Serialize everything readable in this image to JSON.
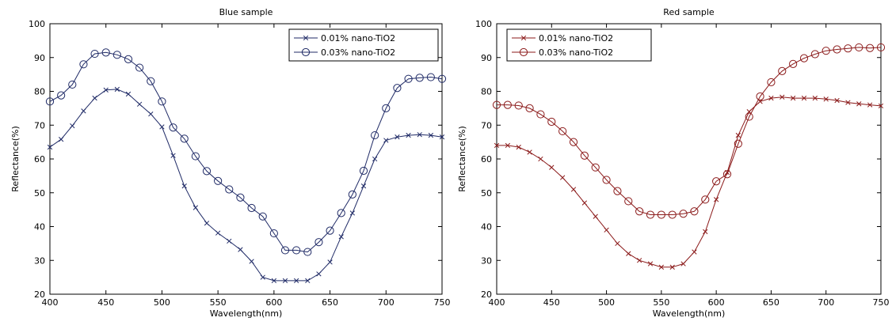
{
  "chart_data": [
    {
      "type": "line",
      "title": "Blue sample",
      "xlabel": "Wavelength(nm)",
      "ylabel": "Reflectance(%)",
      "xlim": [
        400,
        750
      ],
      "ylim": [
        20,
        100
      ],
      "xticks": [
        400,
        450,
        500,
        550,
        600,
        650,
        700,
        750
      ],
      "yticks": [
        20,
        30,
        40,
        50,
        60,
        70,
        80,
        90,
        100
      ],
      "grid": false,
      "legend_position": "top-right",
      "color": "#1f2a66",
      "x": [
        400,
        410,
        420,
        430,
        440,
        450,
        460,
        470,
        480,
        490,
        500,
        510,
        520,
        530,
        540,
        550,
        560,
        570,
        580,
        590,
        600,
        610,
        620,
        630,
        640,
        650,
        660,
        670,
        680,
        690,
        700,
        710,
        720,
        730,
        740,
        750
      ],
      "series": [
        {
          "name": "0.01% nano-TiO2",
          "marker": "x",
          "values": [
            63.5,
            65.8,
            69.8,
            74.2,
            78,
            80.4,
            80.6,
            79.2,
            76.2,
            73.3,
            69.5,
            61,
            52,
            45.6,
            41,
            38.1,
            35.7,
            33.2,
            29.7,
            25,
            24,
            24,
            24,
            24,
            26,
            29.5,
            37,
            44,
            52,
            60,
            65.5,
            66.5,
            67,
            67.2,
            67,
            66.5
          ]
        },
        {
          "name": "0.03% nano-TiO2",
          "marker": "o",
          "values": [
            77,
            78.8,
            82,
            88,
            91.1,
            91.5,
            90.8,
            89.5,
            87,
            83,
            77,
            69.3,
            66,
            60.8,
            56.4,
            53.5,
            51,
            48.6,
            45.5,
            43,
            38,
            33,
            33,
            32.5,
            35.4,
            38.8,
            44,
            49.5,
            56.5,
            67,
            75,
            81,
            83.7,
            84,
            84.2,
            83.7
          ]
        }
      ]
    },
    {
      "type": "line",
      "title": "Red sample",
      "xlabel": "Wavelength(nm)",
      "ylabel": "Reflectance(%)",
      "xlim": [
        400,
        750
      ],
      "ylim": [
        20,
        100
      ],
      "xticks": [
        400,
        450,
        500,
        550,
        600,
        650,
        700,
        750
      ],
      "yticks": [
        20,
        30,
        40,
        50,
        60,
        70,
        80,
        90,
        100
      ],
      "grid": false,
      "legend_position": "top-left",
      "color": "#8b1a1a",
      "x": [
        400,
        410,
        420,
        430,
        440,
        450,
        460,
        470,
        480,
        490,
        500,
        510,
        520,
        530,
        540,
        550,
        560,
        570,
        580,
        590,
        600,
        610,
        620,
        630,
        640,
        650,
        660,
        670,
        680,
        690,
        700,
        710,
        720,
        730,
        740,
        750
      ],
      "series": [
        {
          "name": "0.01% nano-TiO2",
          "marker": "x",
          "values": [
            64,
            64,
            63.5,
            62,
            60,
            57.5,
            54.5,
            51,
            47,
            43,
            39,
            35,
            32,
            30,
            29,
            28,
            28,
            29,
            32.5,
            38.5,
            48,
            56,
            67,
            74,
            77,
            78,
            78.3,
            78,
            78,
            78,
            77.7,
            77.3,
            76.7,
            76.3,
            76,
            75.7
          ]
        },
        {
          "name": "0.03% nano-TiO2",
          "marker": "o",
          "values": [
            76,
            76,
            75.8,
            75,
            73.2,
            71,
            68.2,
            65,
            61,
            57.5,
            53.8,
            50.5,
            47.5,
            44.5,
            43.5,
            43.5,
            43.5,
            43.8,
            44.5,
            48,
            53.4,
            55.5,
            64.5,
            72.5,
            78.5,
            82.7,
            86,
            88.1,
            89.8,
            91,
            92,
            92.4,
            92.7,
            93,
            92.8,
            93
          ]
        }
      ]
    }
  ]
}
